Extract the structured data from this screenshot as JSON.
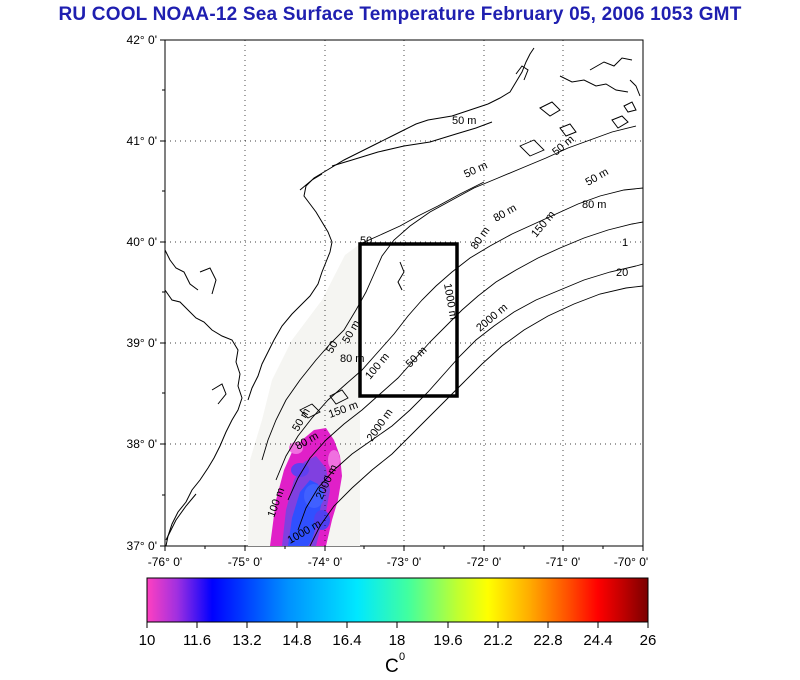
{
  "title": "RU COOL  NOAA-12 Sea Surface Temperature February 05, 2006 1053 GMT",
  "map": {
    "lon_range": [
      -76,
      -70
    ],
    "lat_range": [
      37,
      42
    ],
    "lon_labels": [
      "-76° 0'",
      "-75° 0'",
      "-74° 0'",
      "-73° 0'",
      "-72° 0'",
      "-71° 0'",
      "-70° 0'"
    ],
    "lat_labels": [
      "42° 0'",
      "41° 0'",
      "40° 0'",
      "39° 0'",
      "38° 0'",
      "37° 0'"
    ],
    "grid": "dotted",
    "box_region": {
      "lon_min": -73.5,
      "lon_max": -72.5,
      "lat_min": 38.5,
      "lat_max": 40
    },
    "contour_labels": [
      "50 m",
      "50 m",
      "50 m",
      "80 m",
      "80 m",
      "80 m",
      "50 m",
      "150 m",
      "2000 m",
      "20",
      "1",
      "50",
      "50 m",
      "80 m",
      "100 m",
      "1000 m",
      "50 m",
      "150 m",
      "2000 m",
      "80 m",
      "100 m",
      "1000 m",
      "50",
      "50 m",
      "2000 m"
    ]
  },
  "colorbar": {
    "ticks": [
      "10",
      "11.6",
      "13.2",
      "14.8",
      "16.4",
      "18",
      "19.6",
      "21.2",
      "22.8",
      "24.4",
      "26"
    ],
    "range": [
      10,
      26
    ],
    "unit_label": "C",
    "unit_superscript": "0",
    "colors": [
      "#ff40c0",
      "#9a30e0",
      "#0000ff",
      "#0090ff",
      "#00e8ff",
      "#40ffa0",
      "#b0ff30",
      "#ffff00",
      "#ffb000",
      "#ff5000",
      "#ff0000",
      "#c00000",
      "#7a0000"
    ]
  },
  "sst_colors": {
    "magenta": "#e020c8",
    "pink": "#f070e0",
    "purple": "#8040e0",
    "blue": "#3050ff",
    "violet": "#6040f0"
  }
}
